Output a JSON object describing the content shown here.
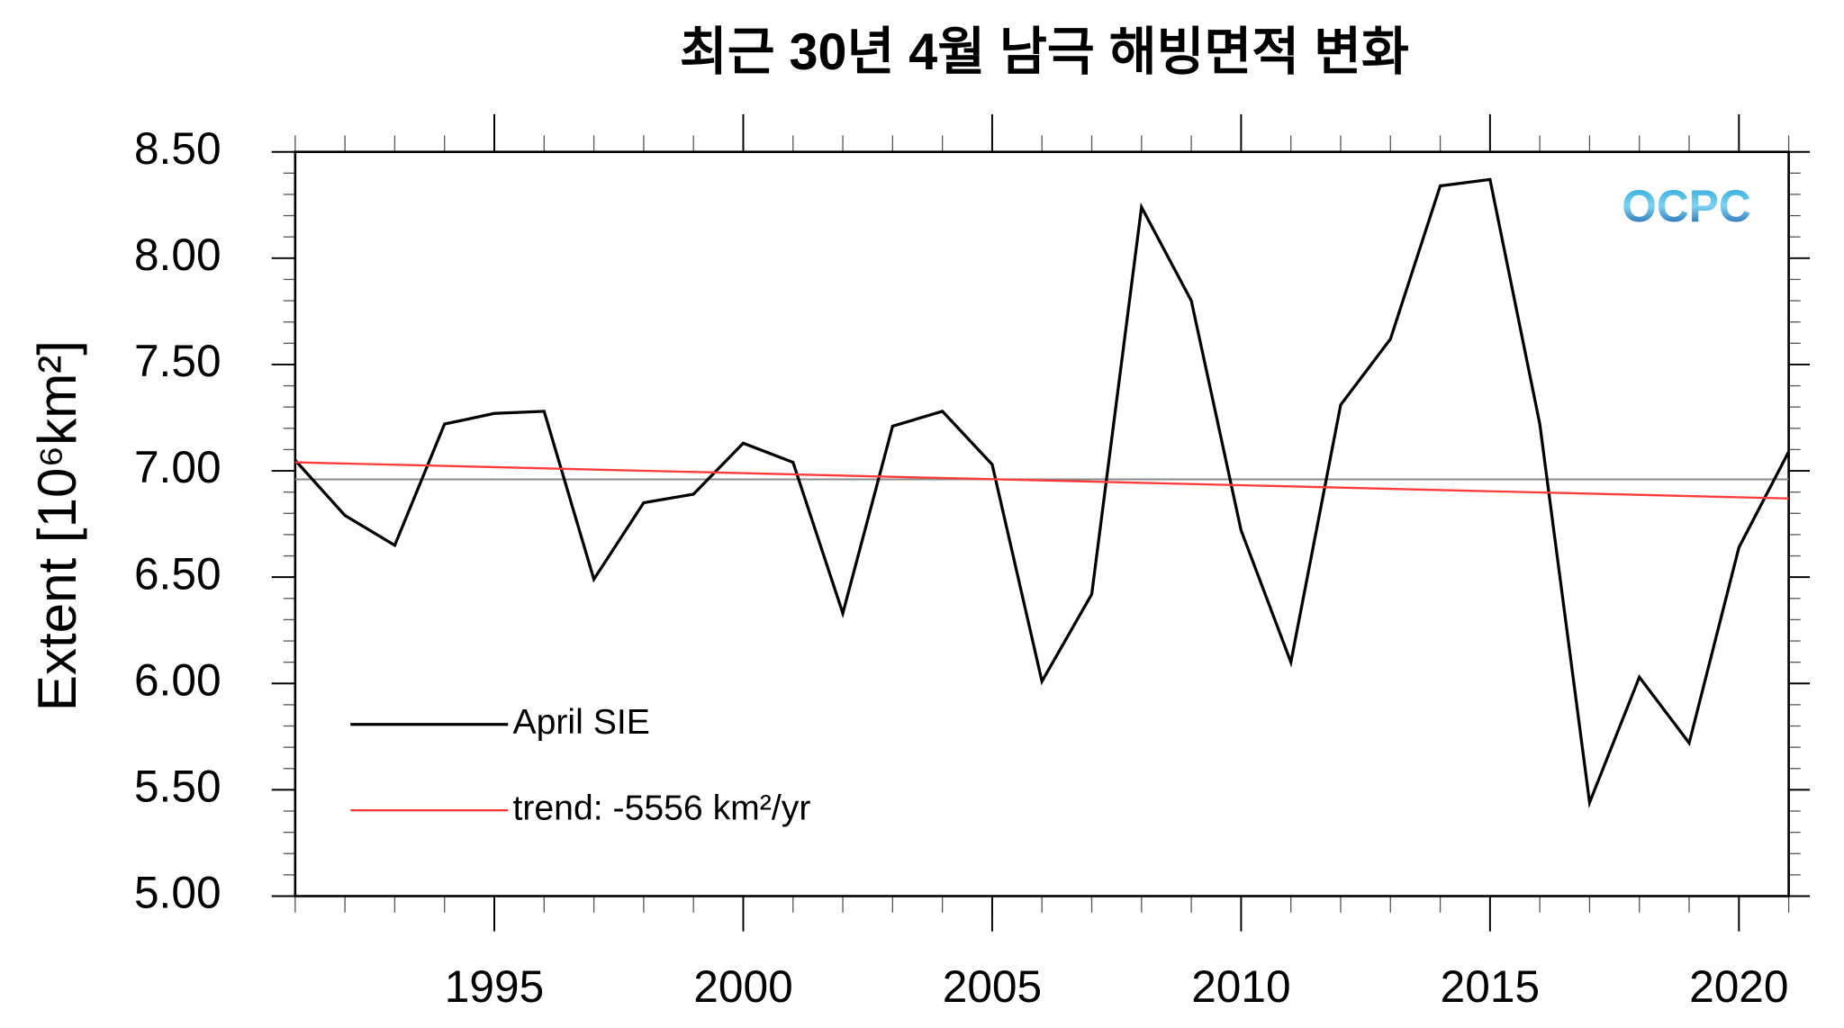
{
  "chart_data": {
    "type": "line",
    "title": "최근 30년 4월 남극 해빙면적 변화",
    "y_label": "Extent [10⁶km²]",
    "logo": "OCPC",
    "x": [
      1991,
      1992,
      1993,
      1994,
      1995,
      1996,
      1997,
      1998,
      1999,
      2000,
      2001,
      2002,
      2003,
      2004,
      2005,
      2006,
      2007,
      2008,
      2009,
      2010,
      2011,
      2012,
      2013,
      2014,
      2015,
      2016,
      2017,
      2018,
      2019,
      2020,
      2021
    ],
    "series": [
      {
        "name": "April SIE",
        "color": "#000000",
        "values": [
          7.05,
          6.79,
          6.65,
          7.22,
          7.27,
          7.28,
          6.49,
          6.85,
          6.89,
          7.13,
          7.04,
          6.33,
          7.21,
          7.28,
          7.03,
          6.01,
          6.42,
          8.24,
          7.8,
          6.72,
          6.1,
          7.31,
          7.62,
          8.34,
          8.37,
          7.22,
          5.44,
          6.03,
          5.72,
          6.64,
          7.09
        ]
      },
      {
        "name": "trend: -5556 km²/yr",
        "color": "#ff3b3b",
        "x": [
          1991,
          2021
        ],
        "values": [
          7.04,
          6.87
        ]
      }
    ],
    "hline": {
      "value": 6.96,
      "color": "#888888"
    },
    "xlim": [
      1991,
      2021
    ],
    "xticks": [
      1995,
      2000,
      2005,
      2010,
      2015,
      2020
    ],
    "ylim": [
      5.0,
      8.5
    ],
    "yticks": [
      {
        "value": 5.0,
        "label": "5.00"
      },
      {
        "value": 5.5,
        "label": "5.50"
      },
      {
        "value": 6.0,
        "label": "6.00"
      },
      {
        "value": 6.5,
        "label": "6.50"
      },
      {
        "value": 7.0,
        "label": "7.00"
      },
      {
        "value": 7.5,
        "label": "7.50"
      },
      {
        "value": 8.0,
        "label": "8.00"
      },
      {
        "value": 8.5,
        "label": "8.50"
      }
    ],
    "yminorticks": [
      5.1,
      5.2,
      5.3,
      5.4,
      5.6,
      5.7,
      5.8,
      5.9,
      6.1,
      6.2,
      6.3,
      6.4,
      6.6,
      6.7,
      6.8,
      6.9,
      7.1,
      7.2,
      7.3,
      7.4,
      7.6,
      7.7,
      7.8,
      7.9,
      8.1,
      8.2,
      8.3,
      8.4
    ],
    "legend": "lower left"
  }
}
